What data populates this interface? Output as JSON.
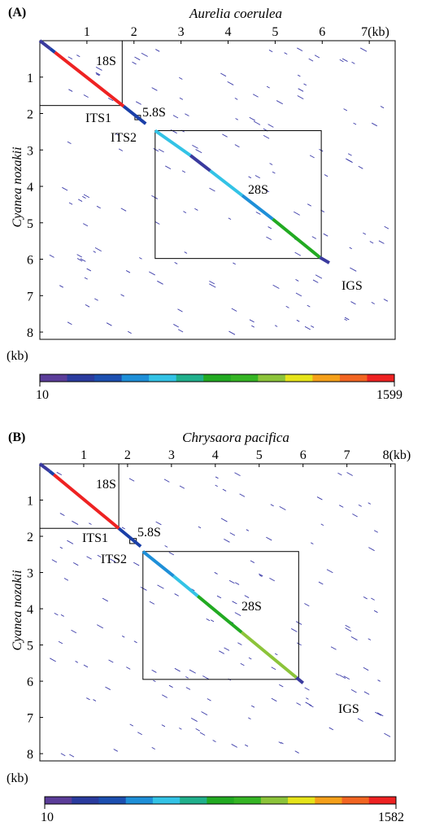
{
  "chart_data": [
    {
      "type": "dotplot",
      "panel_label": "(A)",
      "title": "Aurelia coerulea",
      "ylabel": "Cyanea nozakii",
      "x_unit": "(kb)",
      "y_unit": "(kb)",
      "xlim": [
        0,
        7.55
      ],
      "ylim": [
        0,
        8.2
      ],
      "x_ticks": [
        "1",
        "2",
        "3",
        "4",
        "5",
        "6",
        "7"
      ],
      "y_ticks": [
        "1",
        "2",
        "3",
        "4",
        "5",
        "6",
        "7",
        "8"
      ],
      "regions": [
        {
          "label": "18S",
          "x": [
            0,
            1.75
          ],
          "y": [
            0,
            1.78
          ]
        },
        {
          "label": "5.8S",
          "x": [
            2.02,
            2.14
          ],
          "y": [
            2.05,
            2.17
          ]
        },
        {
          "label": "28S",
          "x": [
            2.45,
            5.98
          ],
          "y": [
            2.47,
            5.98
          ]
        }
      ],
      "annotations": [
        "ITS1",
        "ITS2",
        "IGS"
      ],
      "diagonal_segments": [
        {
          "x0": 0,
          "y0": 0,
          "x1": 0.22,
          "y1": 0.22,
          "color": "#3a3a9e"
        },
        {
          "x0": 0.22,
          "y0": 0.22,
          "x1": 0.32,
          "y1": 0.32,
          "color": "#1a3fa8"
        },
        {
          "x0": 0.32,
          "y0": 0.32,
          "x1": 1.78,
          "y1": 1.8,
          "color": "#ee2222"
        },
        {
          "x0": 1.78,
          "y0": 1.8,
          "x1": 2.25,
          "y1": 2.28,
          "color": "#1a3fa8"
        },
        {
          "x0": 2.45,
          "y0": 2.47,
          "x1": 3.2,
          "y1": 3.15,
          "color": "#33c3e6"
        },
        {
          "x0": 3.2,
          "y0": 3.15,
          "x1": 3.62,
          "y1": 3.57,
          "color": "#3a3a9e"
        },
        {
          "x0": 3.62,
          "y0": 3.57,
          "x1": 4.3,
          "y1": 4.25,
          "color": "#33c3e6"
        },
        {
          "x0": 4.3,
          "y0": 4.25,
          "x1": 4.95,
          "y1": 4.9,
          "color": "#1e8fd8"
        },
        {
          "x0": 4.95,
          "y0": 4.9,
          "x1": 5.95,
          "y1": 5.95,
          "color": "#22aa22"
        },
        {
          "x0": 5.95,
          "y0": 5.95,
          "x1": 6.15,
          "y1": 6.1,
          "color": "#3a3a9e"
        }
      ],
      "colorbar": {
        "min_label": "10",
        "max_label": "1599",
        "colors": [
          "#5b3d99",
          "#2a3b9e",
          "#1c4fb0",
          "#1e8fd8",
          "#33c3e6",
          "#20b08c",
          "#22aa22",
          "#35b524",
          "#8cc43a",
          "#e6e41a",
          "#f5a01a",
          "#f26522",
          "#ee2222"
        ]
      }
    },
    {
      "type": "dotplot",
      "panel_label": "(B)",
      "title": "Chrysaora pacifica",
      "ylabel": "Cyanea nozakii",
      "x_unit": "(kb)",
      "y_unit": "(kb)",
      "xlim": [
        0,
        8.1
      ],
      "ylim": [
        0,
        8.2
      ],
      "x_ticks": [
        "1",
        "2",
        "3",
        "4",
        "5",
        "6",
        "7",
        "8"
      ],
      "y_ticks": [
        "1",
        "2",
        "3",
        "4",
        "5",
        "6",
        "7",
        "8"
      ],
      "regions": [
        {
          "label": "18S",
          "x": [
            0,
            1.8
          ],
          "y": [
            0,
            1.78
          ]
        },
        {
          "label": "5.8S",
          "x": [
            2.05,
            2.2
          ],
          "y": [
            2.06,
            2.2
          ]
        },
        {
          "label": "28S",
          "x": [
            2.35,
            5.9
          ],
          "y": [
            2.42,
            5.95
          ]
        }
      ],
      "annotations": [
        "ITS1",
        "ITS2",
        "IGS"
      ],
      "diagonal_segments": [
        {
          "x0": 0,
          "y0": 0,
          "x1": 0.22,
          "y1": 0.2,
          "color": "#3a3a9e"
        },
        {
          "x0": 0.22,
          "y0": 0.2,
          "x1": 0.32,
          "y1": 0.3,
          "color": "#1a3fa8"
        },
        {
          "x0": 0.32,
          "y0": 0.3,
          "x1": 1.8,
          "y1": 1.78,
          "color": "#ee2222"
        },
        {
          "x0": 1.8,
          "y0": 1.78,
          "x1": 2.3,
          "y1": 2.28,
          "color": "#1a3fa8"
        },
        {
          "x0": 2.35,
          "y0": 2.42,
          "x1": 3.05,
          "y1": 3.1,
          "color": "#1e8fd8"
        },
        {
          "x0": 3.05,
          "y0": 3.1,
          "x1": 3.6,
          "y1": 3.65,
          "color": "#33c3e6"
        },
        {
          "x0": 3.6,
          "y0": 3.65,
          "x1": 4.6,
          "y1": 4.65,
          "color": "#22aa22"
        },
        {
          "x0": 4.6,
          "y0": 4.65,
          "x1": 5.85,
          "y1": 5.9,
          "color": "#8cc43a"
        },
        {
          "x0": 5.85,
          "y0": 5.9,
          "x1": 6.0,
          "y1": 6.05,
          "color": "#3a3a9e"
        }
      ],
      "colorbar": {
        "min_label": "10",
        "max_label": "1582",
        "colors": [
          "#5b3d99",
          "#2a3b9e",
          "#1c4fb0",
          "#1e8fd8",
          "#33c3e6",
          "#20b08c",
          "#22aa22",
          "#35b524",
          "#8cc43a",
          "#e6e41a",
          "#f5a01a",
          "#f26522",
          "#ee2222"
        ]
      }
    }
  ]
}
